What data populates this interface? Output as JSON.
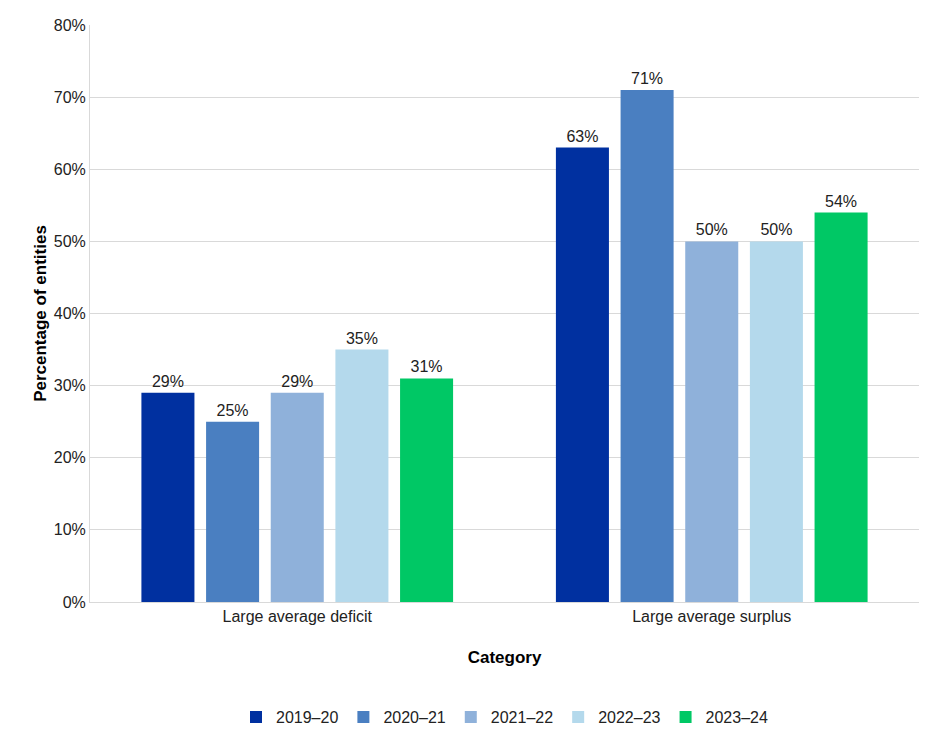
{
  "chart_data": {
    "type": "bar",
    "x_label": "Category",
    "y_label": "Percentage of entities",
    "categories": [
      "Large average deficit",
      "Large average surplus"
    ],
    "series": [
      {
        "name": "2019–20",
        "color": "#0030a0",
        "values": [
          29,
          63
        ],
        "value_labels": [
          "29%",
          "63%"
        ]
      },
      {
        "name": "2020–21",
        "color": "#4a7fc1",
        "values": [
          25,
          71
        ],
        "value_labels": [
          "25%",
          "71%"
        ]
      },
      {
        "name": "2021–22",
        "color": "#8fb1da",
        "values": [
          29,
          50
        ],
        "value_labels": [
          "29%",
          "50%"
        ]
      },
      {
        "name": "2022–23",
        "color": "#b4d9ec",
        "values": [
          35,
          50
        ],
        "value_labels": [
          "35%",
          "50%"
        ]
      },
      {
        "name": "2023–24",
        "color": "#00c865",
        "values": [
          31,
          54
        ],
        "value_labels": [
          "31%",
          "54%"
        ]
      }
    ],
    "ylim": [
      0,
      80
    ],
    "yticks": [
      {
        "value": 0,
        "label": "0%"
      },
      {
        "value": 10,
        "label": "10%"
      },
      {
        "value": 20,
        "label": "20%"
      },
      {
        "value": 30,
        "label": "30%"
      },
      {
        "value": 40,
        "label": "40%"
      },
      {
        "value": 50,
        "label": "50%"
      },
      {
        "value": 60,
        "label": "60%"
      },
      {
        "value": 70,
        "label": "70%"
      },
      {
        "value": 80,
        "label": "80%"
      }
    ],
    "grid": true,
    "legend": "bottom",
    "data_labels": true
  }
}
